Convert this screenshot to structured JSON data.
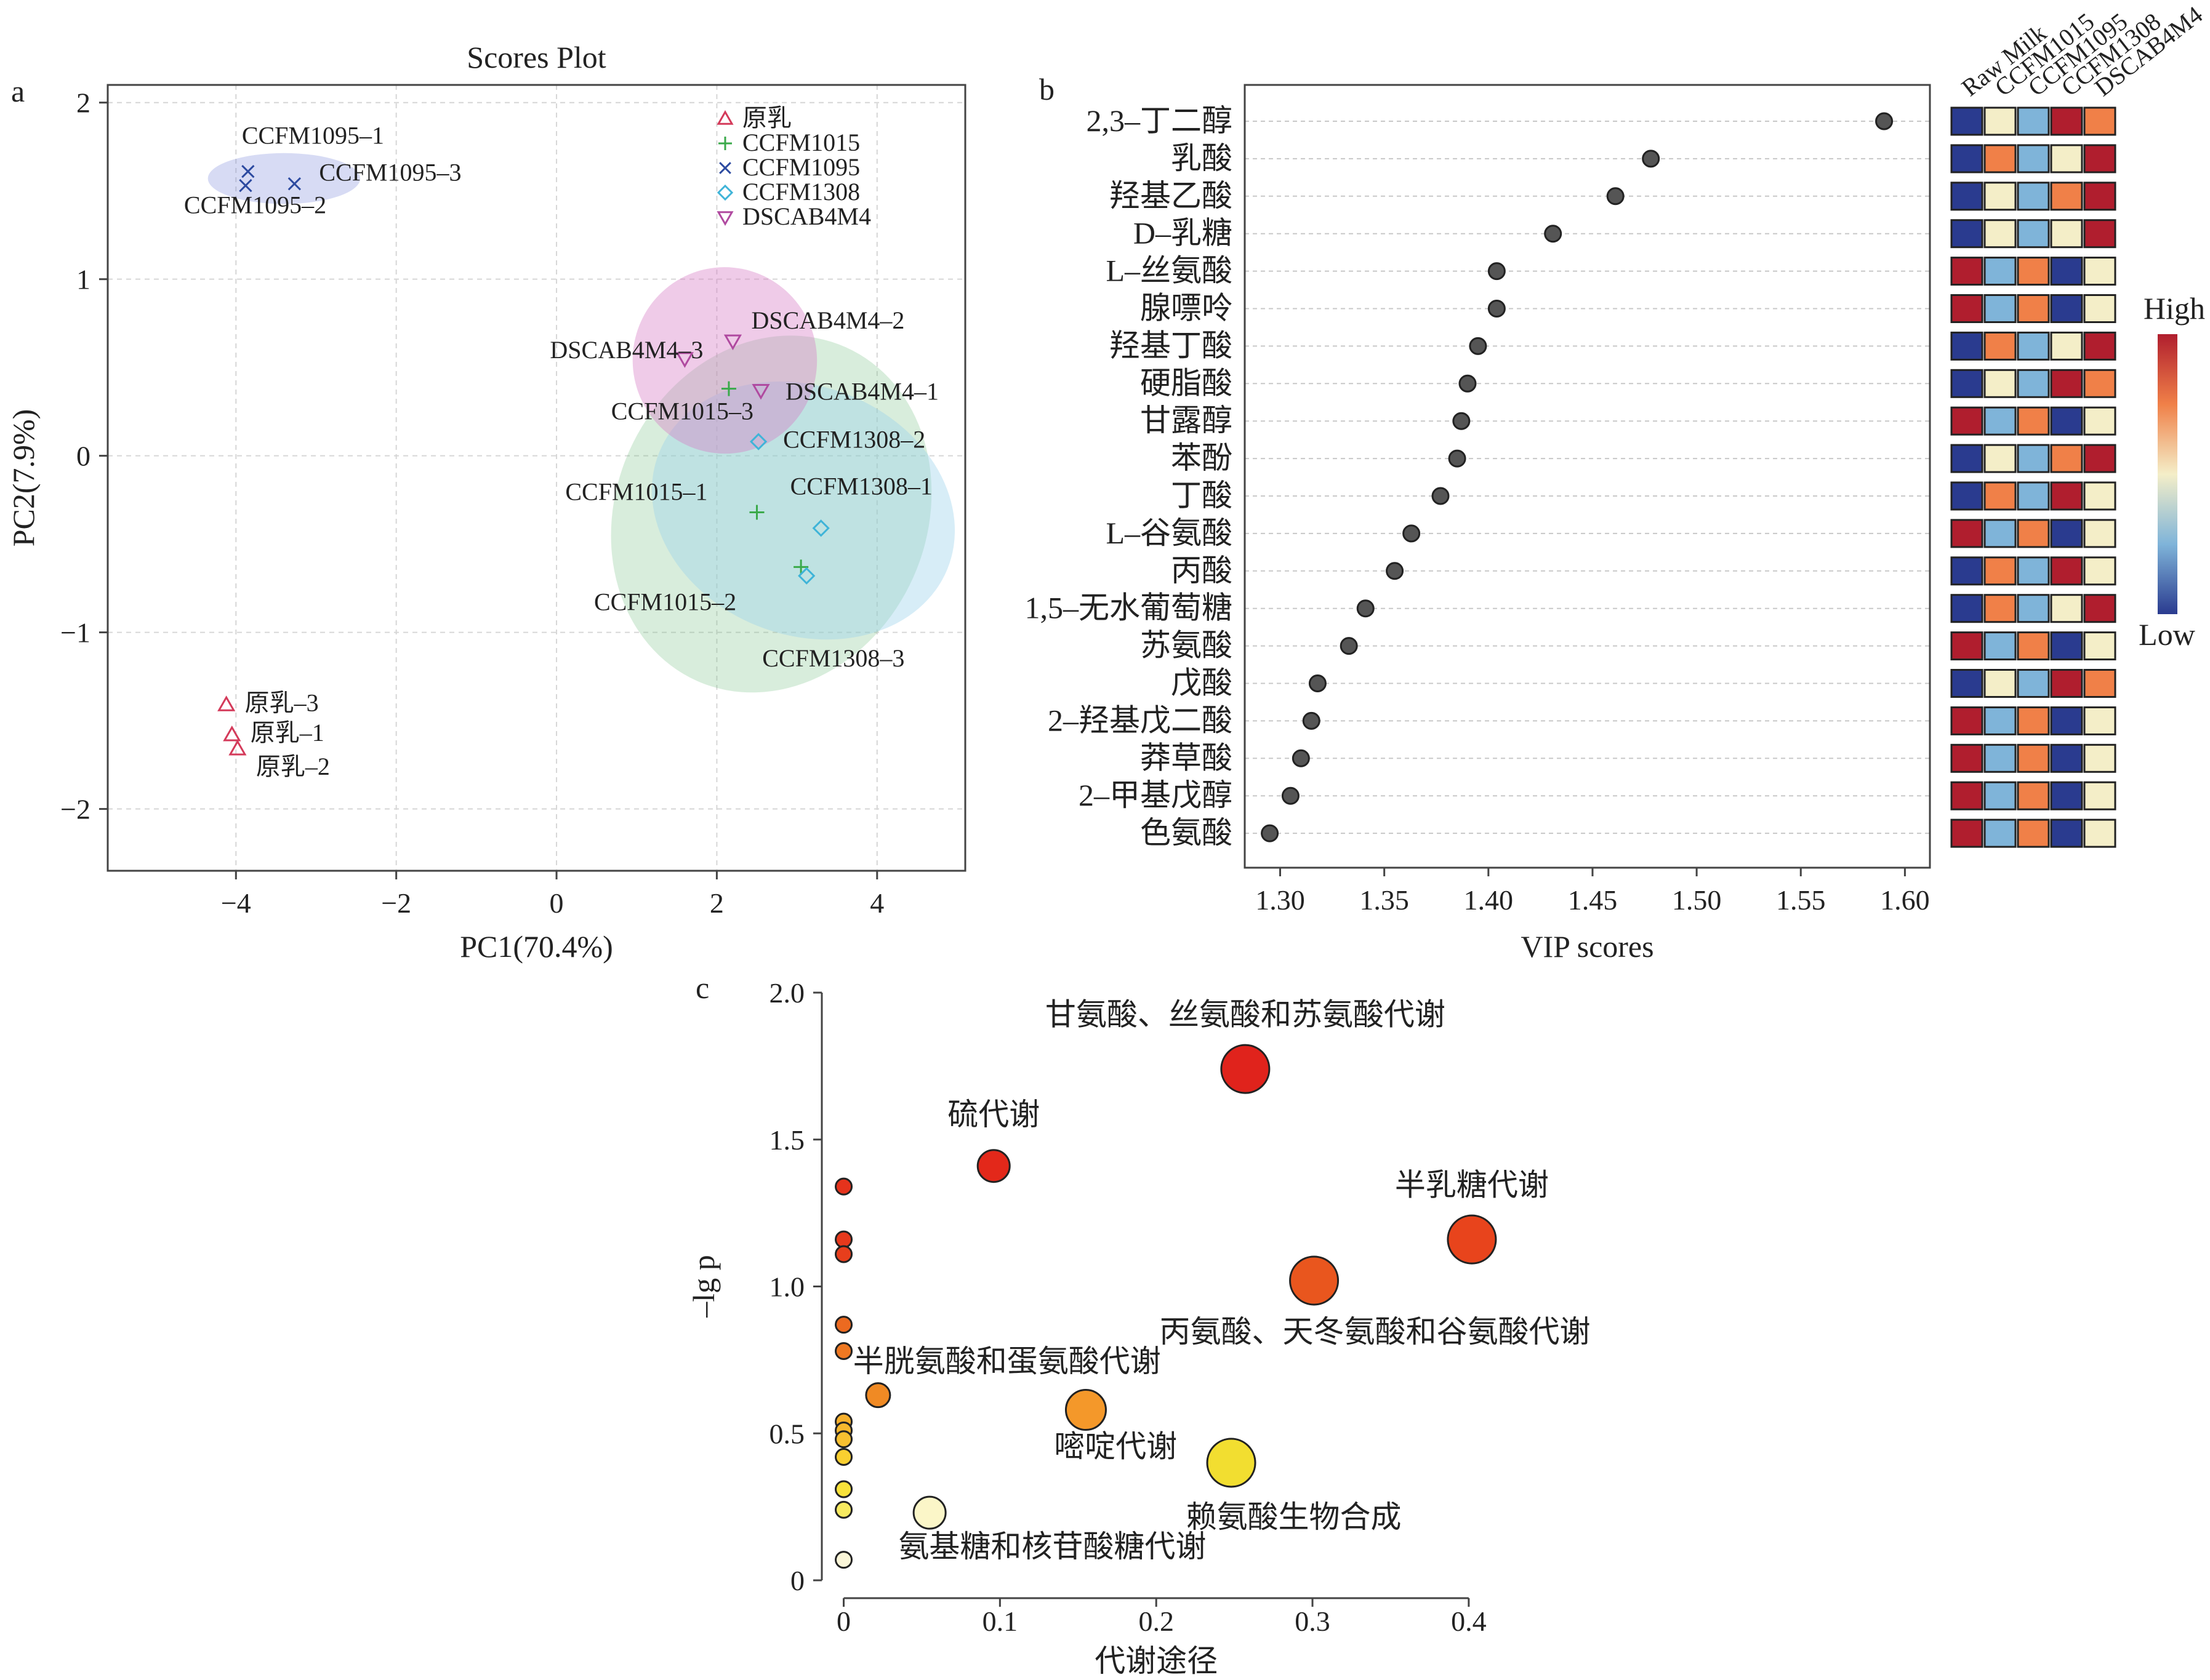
{
  "figure": {
    "panel_a": "a",
    "panel_b": "b",
    "panel_c": "c"
  },
  "chart_data": [
    {
      "type": "scatter",
      "title": "Scores Plot",
      "xlabel": "PC1(70.4%)",
      "ylabel": "PC2(7.9%)",
      "xlim": [
        -5.6,
        5.1
      ],
      "ylim": [
        -2.35,
        2.1
      ],
      "xticks": [
        -4,
        -2,
        0,
        2,
        4
      ],
      "yticks": [
        -2,
        -1,
        0,
        1,
        2
      ],
      "grid": true,
      "legend_position": "top-right",
      "series": [
        {
          "name": "原乳",
          "marker": "triangle-up",
          "color": "#d43a5a",
          "points": [
            {
              "x": -4.12,
              "y": -1.41,
              "label": "原乳–3"
            },
            {
              "x": -4.05,
              "y": -1.58,
              "label": "原乳–1"
            },
            {
              "x": -3.98,
              "y": -1.66,
              "label": "原乳–2"
            }
          ]
        },
        {
          "name": "CCFM1015",
          "marker": "plus",
          "color": "#3aaa4a",
          "points": [
            {
              "x": 2.15,
              "y": 0.38,
              "label": "CCFM1015–3"
            },
            {
              "x": 2.5,
              "y": -0.32,
              "label": "CCFM1015–1"
            },
            {
              "x": 3.05,
              "y": -0.63,
              "label": "CCFM1015–2"
            }
          ]
        },
        {
          "name": "CCFM1095",
          "marker": "x",
          "color": "#2c4aa0",
          "points": [
            {
              "x": -3.85,
              "y": 1.61,
              "label": "CCFM1095–1"
            },
            {
              "x": -3.27,
              "y": 1.54,
              "label": "CCFM1095–3"
            },
            {
              "x": -3.88,
              "y": 1.53,
              "label": "CCFM1095–2"
            }
          ]
        },
        {
          "name": "CCFM1308",
          "marker": "diamond",
          "color": "#3fb4d8",
          "points": [
            {
              "x": 2.52,
              "y": 0.08,
              "label": "CCFM1308–2"
            },
            {
              "x": 3.3,
              "y": -0.41,
              "label": "CCFM1308–1"
            },
            {
              "x": 3.12,
              "y": -0.68,
              "label": "CCFM1308–3"
            }
          ]
        },
        {
          "name": "DSCAB4M4",
          "marker": "triangle-down",
          "color": "#b04aa0",
          "points": [
            {
              "x": 2.2,
              "y": 0.65,
              "label": "DSCAB4M4–2"
            },
            {
              "x": 1.6,
              "y": 0.55,
              "label": "DSCAB4M4–3"
            },
            {
              "x": 2.55,
              "y": 0.37,
              "label": "DSCAB4M4–1"
            }
          ]
        }
      ]
    },
    {
      "type": "scatter",
      "xlabel": "VIP scores",
      "xlim": [
        1.283,
        1.612
      ],
      "xticks": [
        1.3,
        1.35,
        1.4,
        1.45,
        1.5,
        1.55,
        1.6
      ],
      "categories": [
        "2,3–丁二醇",
        "乳酸",
        "羟基乙酸",
        "D–乳糖",
        "L–丝氨酸",
        "腺嘌呤",
        "羟基丁酸",
        "硬脂酸",
        "甘露醇",
        "苯酚",
        "丁酸",
        "L–谷氨酸",
        "丙酸",
        "1,5–无水葡萄糖",
        "苏氨酸",
        "戊酸",
        "2–羟基戊二酸",
        "莽草酸",
        "2–甲基戊醇",
        "色氨酸"
      ],
      "values": [
        1.59,
        1.478,
        1.461,
        1.431,
        1.404,
        1.404,
        1.395,
        1.39,
        1.387,
        1.385,
        1.377,
        1.363,
        1.355,
        1.341,
        1.333,
        1.318,
        1.315,
        1.31,
        1.305,
        1.295
      ],
      "heatmap_columns": [
        "Raw Milk",
        "CCFM1015",
        "CCFM1095",
        "CCFM1308",
        "DSCAB4M4"
      ],
      "heatmap_palette": [
        "#2a3b8f",
        "#7fb4d9",
        "#f4eec8",
        "#f08048",
        "#b01e2e"
      ],
      "heatmap_levels": [
        [
          0,
          2,
          1,
          4,
          3
        ],
        [
          0,
          3,
          1,
          2,
          4
        ],
        [
          0,
          2,
          1,
          3,
          4
        ],
        [
          0,
          2,
          1,
          2,
          4
        ],
        [
          4,
          1,
          3,
          0,
          2
        ],
        [
          4,
          1,
          3,
          0,
          2
        ],
        [
          0,
          3,
          1,
          2,
          4
        ],
        [
          0,
          2,
          1,
          4,
          3
        ],
        [
          4,
          1,
          3,
          0,
          2
        ],
        [
          0,
          2,
          1,
          3,
          4
        ],
        [
          0,
          3,
          1,
          4,
          2
        ],
        [
          4,
          1,
          3,
          0,
          2
        ],
        [
          0,
          3,
          1,
          4,
          2
        ],
        [
          0,
          3,
          1,
          2,
          4
        ],
        [
          4,
          1,
          3,
          0,
          2
        ],
        [
          0,
          2,
          1,
          4,
          3
        ],
        [
          4,
          1,
          3,
          0,
          2
        ],
        [
          4,
          1,
          3,
          0,
          2
        ],
        [
          4,
          1,
          3,
          0,
          2
        ],
        [
          4,
          1,
          3,
          0,
          2
        ]
      ],
      "colorbar": {
        "high": "High",
        "low": "Low"
      }
    },
    {
      "type": "scatter",
      "xlabel": "代谢途径",
      "ylabel": "–lg p",
      "xlim": [
        -0.014,
        0.43
      ],
      "ylim": [
        0,
        2.0
      ],
      "xticks": [
        0,
        0.1,
        0.2,
        0.3,
        0.4
      ],
      "yticks": [
        0,
        0.5,
        1.0,
        1.5,
        2.0
      ],
      "points": [
        {
          "x": 0.257,
          "y": 1.74,
          "size": 3,
          "color": "#e0231c",
          "label": "甘氨酸、丝氨酸和苏氨酸代谢"
        },
        {
          "x": 0.096,
          "y": 1.41,
          "size": 2,
          "color": "#e3281a",
          "label": "硫代谢"
        },
        {
          "x": 0.402,
          "y": 1.16,
          "size": 3,
          "color": "#e8441c",
          "label": "半乳糖代谢"
        },
        {
          "x": 0.301,
          "y": 1.02,
          "size": 3,
          "color": "#e9561e",
          "label": "丙氨酸、天冬氨酸和谷氨酸代谢"
        },
        {
          "x": 0.022,
          "y": 0.63,
          "size": 1.5,
          "color": "#f08a24",
          "label": "半胱氨酸和蛋氨酸代谢"
        },
        {
          "x": 0.155,
          "y": 0.58,
          "size": 2.5,
          "color": "#f4982a",
          "label": "嘧啶代谢"
        },
        {
          "x": 0.248,
          "y": 0.4,
          "size": 3,
          "color": "#f2de30",
          "label": "赖氨酸生物合成"
        },
        {
          "x": 0.055,
          "y": 0.23,
          "size": 2,
          "color": "#fbf6c8",
          "label": "氨基糖和核苷酸糖代谢"
        },
        {
          "x": 0,
          "y": 1.34,
          "size": 1,
          "color": "#e5331c"
        },
        {
          "x": 0,
          "y": 1.16,
          "size": 1,
          "color": "#e6391c"
        },
        {
          "x": 0,
          "y": 1.11,
          "size": 1,
          "color": "#e73e1c"
        },
        {
          "x": 0,
          "y": 0.87,
          "size": 1,
          "color": "#ec6a20"
        },
        {
          "x": 0,
          "y": 0.78,
          "size": 1,
          "color": "#ee7822"
        },
        {
          "x": 0,
          "y": 0.54,
          "size": 1,
          "color": "#f6b02c"
        },
        {
          "x": 0,
          "y": 0.51,
          "size": 1,
          "color": "#f7b82e"
        },
        {
          "x": 0,
          "y": 0.48,
          "size": 1,
          "color": "#f8c030"
        },
        {
          "x": 0,
          "y": 0.42,
          "size": 1,
          "color": "#f9cf30"
        },
        {
          "x": 0,
          "y": 0.31,
          "size": 1,
          "color": "#f8e23a"
        },
        {
          "x": 0,
          "y": 0.24,
          "size": 1,
          "color": "#f7ea60"
        },
        {
          "x": 0,
          "y": 0.07,
          "size": 1,
          "color": "#fbf6d8"
        }
      ]
    }
  ]
}
